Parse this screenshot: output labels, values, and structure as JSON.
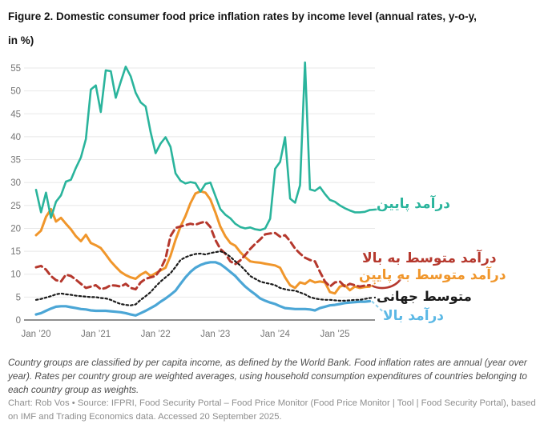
{
  "title": {
    "line1": "Figure 2. Domestic consumer food price inflation rates by income level (annual rates, y-o-y,",
    "line2": "in %)"
  },
  "chart_data": {
    "type": "line",
    "x_unit": "month",
    "x_start": "Jan 2020",
    "x_end": "Aug 2025",
    "x_tick_labels": [
      "Jan ’20",
      "Jan ’21",
      "Jan ’22",
      "Jan ’23",
      "Jan ’24",
      "Jan ’25"
    ],
    "x_tick_month_indices": [
      0,
      12,
      24,
      36,
      48,
      60
    ],
    "y_ticks": [
      0,
      5,
      10,
      15,
      20,
      25,
      30,
      35,
      40,
      45,
      50,
      55
    ],
    "ylim": [
      0,
      57
    ],
    "grid": true,
    "legend_position": "right-of-line-ends",
    "axis_colors": {
      "grid": "#e8e8e8",
      "baseline": "#8f8f8f",
      "tick_text": "#757575"
    },
    "series": [
      {
        "id": "low_income",
        "label": "درآمد پایین",
        "color": "#2ab49c",
        "style": "solid",
        "width": 2.6,
        "values": [
          28.4,
          23.5,
          27.8,
          22.3,
          25.8,
          27.2,
          30.2,
          30.6,
          33.2,
          35.5,
          39.5,
          50.3,
          51.2,
          45.4,
          54.5,
          54.3,
          48.5,
          52.0,
          55.3,
          53.2,
          49.6,
          47.5,
          46.6,
          41.0,
          36.4,
          38.5,
          39.9,
          37.8,
          32.0,
          30.4,
          29.8,
          30.1,
          29.9,
          28.0,
          29.7,
          30.0,
          27.1,
          24.2,
          23.0,
          22.2,
          21.0,
          20.3,
          20.0,
          20.2,
          19.8,
          19.6,
          20.0,
          22.1,
          33.0,
          34.5,
          39.9,
          26.5,
          25.6,
          29.4,
          56.2,
          28.5,
          28.2,
          29.0,
          27.5,
          26.2,
          25.8,
          25.0,
          24.4,
          23.9,
          23.5,
          23.5,
          23.6,
          24.0
        ]
      },
      {
        "id": "lower_middle_income",
        "label": "درآمد متوسط به پایین",
        "color": "#f0962b",
        "style": "solid",
        "width": 3,
        "values": [
          18.5,
          19.5,
          22.5,
          24.2,
          21.5,
          22.3,
          21.0,
          19.8,
          18.3,
          17.2,
          18.6,
          16.8,
          16.3,
          15.7,
          14.3,
          12.8,
          11.6,
          10.5,
          9.8,
          9.3,
          9.0,
          9.9,
          10.5,
          9.6,
          10.2,
          10.8,
          11.4,
          14.0,
          17.5,
          20.4,
          22.7,
          25.5,
          27.6,
          28.1,
          27.8,
          26.3,
          23.5,
          20.4,
          18.3,
          16.8,
          16.2,
          14.8,
          13.7,
          12.8,
          12.6,
          12.5,
          12.3,
          12.1,
          11.9,
          11.4,
          9.3,
          7.6,
          7.0,
          8.2,
          7.9,
          8.7,
          8.2,
          8.4,
          8.2,
          6.1,
          5.8,
          7.3,
          7.6,
          6.5,
          7.3,
          7.0,
          7.2,
          7.3
        ]
      },
      {
        "id": "upper_middle_income",
        "label": "درآمد متوسط به بالا",
        "color": "#b5382d",
        "style": "dashed",
        "width": 3,
        "values": [
          11.5,
          11.8,
          11.0,
          9.6,
          8.7,
          8.4,
          9.9,
          9.6,
          8.8,
          7.9,
          7.0,
          7.3,
          7.6,
          6.7,
          7.0,
          7.6,
          7.5,
          7.3,
          7.9,
          7.0,
          6.7,
          8.2,
          9.0,
          9.3,
          9.6,
          11.1,
          13.4,
          18.3,
          20.1,
          20.4,
          20.7,
          21.0,
          20.8,
          21.2,
          21.5,
          20.3,
          17.5,
          15.5,
          14.5,
          12.8,
          12.2,
          13.0,
          14.2,
          15.5,
          16.6,
          17.6,
          18.7,
          18.9,
          19.0,
          18.2,
          18.5,
          17.2,
          15.6,
          14.5,
          13.6,
          13.1,
          12.8,
          10.5,
          8.4,
          7.3,
          8.2,
          8.4,
          7.3,
          7.9,
          7.6,
          7.3,
          7.5,
          7.6
        ]
      },
      {
        "id": "world_average",
        "label": "متوسط جهانی",
        "color": "#1a1a1a",
        "style": "dotted",
        "width": 2.2,
        "values": [
          4.4,
          4.6,
          4.9,
          5.2,
          5.6,
          5.8,
          5.6,
          5.5,
          5.3,
          5.2,
          5.1,
          5.0,
          5.0,
          4.8,
          4.7,
          4.4,
          3.9,
          3.5,
          3.3,
          3.2,
          3.4,
          4.4,
          5.2,
          6.1,
          7.3,
          8.4,
          9.3,
          10.2,
          11.6,
          13.1,
          13.7,
          14.1,
          14.4,
          14.5,
          14.3,
          14.6,
          14.8,
          15.0,
          14.6,
          13.8,
          12.8,
          11.9,
          10.8,
          9.6,
          9.0,
          8.4,
          8.1,
          7.9,
          7.6,
          7.0,
          6.7,
          6.5,
          6.4,
          6.0,
          5.6,
          5.0,
          4.7,
          4.5,
          4.4,
          4.4,
          4.3,
          4.2,
          4.2,
          4.3,
          4.4,
          4.4,
          4.6,
          4.8
        ]
      },
      {
        "id": "high_income",
        "label": "درآمد بالا",
        "color": "#4ba6d6",
        "label_color": "#5bb8e5",
        "style": "solid",
        "width": 3.2,
        "values": [
          1.2,
          1.5,
          2.0,
          2.5,
          2.9,
          3.0,
          3.0,
          2.8,
          2.6,
          2.4,
          2.3,
          2.1,
          2.0,
          2.0,
          2.0,
          1.9,
          1.8,
          1.7,
          1.5,
          1.2,
          1.0,
          1.5,
          2.0,
          2.6,
          3.2,
          4.0,
          4.7,
          5.5,
          6.4,
          7.9,
          9.3,
          10.5,
          11.4,
          12.0,
          12.4,
          12.6,
          12.6,
          12.2,
          11.4,
          10.5,
          9.6,
          8.4,
          7.3,
          6.4,
          5.6,
          4.7,
          4.2,
          3.8,
          3.5,
          3.0,
          2.6,
          2.5,
          2.4,
          2.4,
          2.4,
          2.3,
          2.1,
          2.6,
          2.9,
          3.2,
          3.3,
          3.5,
          3.7,
          3.8,
          3.9,
          4.0,
          4.0,
          4.1
        ]
      }
    ]
  },
  "footnote": "Country groups are classified by per capita income, as defined by the World Bank. Food inflation rates are annual (year over year). Rates per country group are weighted averages, using household consumption expenditures of countries belonging to each country group as weights.",
  "credit": "Chart: Rob Vos • Source: IFPRI, Food Security Portal – Food Price Monitor (Food Price Monitor | Tool | Food Security Portal), based on IMF and Trading Economics data. Accessed 20 September 2025."
}
